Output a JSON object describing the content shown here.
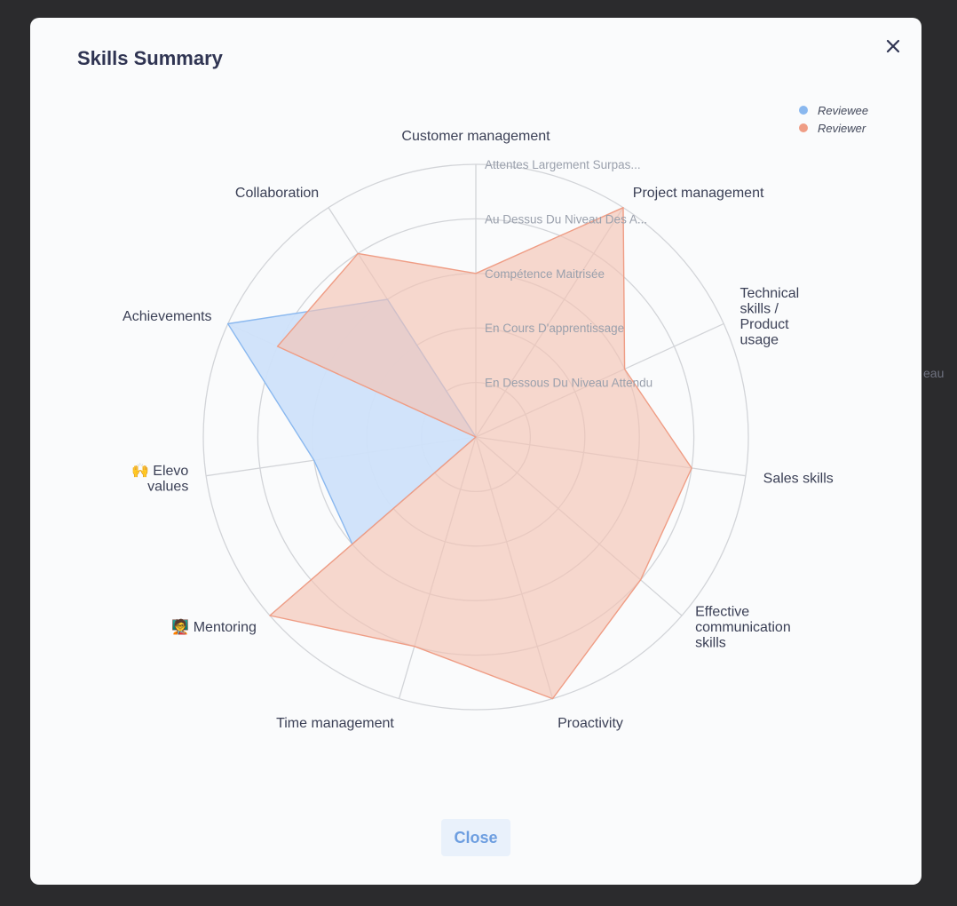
{
  "backdrop": {
    "text": "eau"
  },
  "modal": {
    "title": "Skills Summary",
    "close_icon": "close-icon",
    "close_button_label": "Close"
  },
  "colors": {
    "reviewee": "#8ab8ef",
    "reviewee_fill": "#cfe2fa",
    "reviewer": "#ef9d85",
    "reviewer_fill": "#f5c3b4",
    "grid": "#d2d4d8",
    "text": "#3a3f55",
    "level_text": "#9aa0ac"
  },
  "chart_data": {
    "type": "radar",
    "title": "",
    "axes": [
      {
        "label": "Customer management",
        "lines": [
          "Customer management"
        ]
      },
      {
        "label": "Project management",
        "lines": [
          "Project management"
        ]
      },
      {
        "label": "Technical skills / Product usage",
        "lines": [
          "Technical",
          "skills /",
          "Product",
          "usage"
        ]
      },
      {
        "label": "Sales skills",
        "lines": [
          "Sales skills"
        ]
      },
      {
        "label": "Effective communication skills",
        "lines": [
          "Effective",
          "communication",
          "skills"
        ]
      },
      {
        "label": "Proactivity",
        "lines": [
          "Proactivity"
        ]
      },
      {
        "label": "Time management",
        "lines": [
          "Time management"
        ]
      },
      {
        "label": "🧑‍🏫 Mentoring",
        "lines": [
          "🧑‍🏫 Mentoring"
        ]
      },
      {
        "label": "🙌 Elevo values",
        "lines": [
          "🙌 Elevo",
          "values"
        ]
      },
      {
        "label": "Achievements",
        "lines": [
          "Achievements"
        ]
      },
      {
        "label": "Collaboration",
        "lines": [
          "Collaboration"
        ]
      }
    ],
    "levels": [
      "En Dessous Du Niveau Attendu",
      "En Cours D'apprentissage",
      "Compétence Maitrisée",
      "Au Dessus Du Niveau Des A...",
      "Attentes Largement Surpas..."
    ],
    "range": [
      0,
      5
    ],
    "legend_position": "top-right",
    "series": [
      {
        "name": "Reviewee",
        "values": [
          0,
          0,
          0,
          0,
          0,
          0,
          0,
          3,
          3,
          5,
          3
        ]
      },
      {
        "name": "Reviewer",
        "values": [
          3,
          5,
          3,
          4,
          4,
          5,
          4,
          5,
          0,
          4,
          4
        ]
      }
    ]
  }
}
